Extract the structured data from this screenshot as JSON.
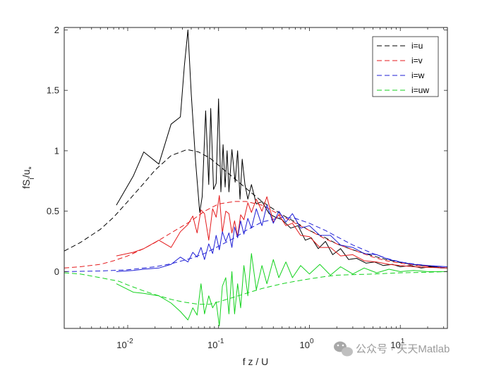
{
  "chart_data": {
    "type": "line",
    "xlabel": "f z / U",
    "ylabel": "fS_i/u_*",
    "xscale": "log",
    "xlim": [
      0.002,
      33
    ],
    "ylim": [
      -0.47,
      2.02
    ],
    "x_ticks": [
      {
        "value": 0.01,
        "label": "10^-2"
      },
      {
        "value": 0.1,
        "label": "10^-1"
      },
      {
        "value": 1,
        "label": "10^0"
      },
      {
        "value": 10,
        "label": "10^1"
      }
    ],
    "y_ticks": [
      0,
      0.5,
      1,
      1.5,
      2
    ],
    "y_tick_labels": [
      "0",
      "0.5",
      "1",
      "1.5",
      "2"
    ],
    "legend": {
      "position": "top-right",
      "entries": [
        "i=u",
        "i=v",
        "i=w",
        "i=uw"
      ]
    },
    "series": [
      {
        "name": "i=u",
        "color": "#000000",
        "kind": "model",
        "x": [
          0.002,
          0.003,
          0.005,
          0.007,
          0.01,
          0.015,
          0.02,
          0.03,
          0.045,
          0.06,
          0.08,
          0.1,
          0.15,
          0.2,
          0.3,
          0.5,
          0.7,
          1,
          1.5,
          2,
          3,
          5,
          7,
          10,
          15,
          20,
          33
        ],
        "y": [
          0.17,
          0.24,
          0.35,
          0.45,
          0.58,
          0.73,
          0.84,
          0.96,
          1.01,
          0.99,
          0.94,
          0.88,
          0.77,
          0.69,
          0.58,
          0.47,
          0.41,
          0.34,
          0.28,
          0.23,
          0.18,
          0.13,
          0.1,
          0.075,
          0.055,
          0.045,
          0.03
        ]
      },
      {
        "name": "i=v",
        "color": "#e41a1c",
        "kind": "model",
        "x": [
          0.002,
          0.003,
          0.005,
          0.007,
          0.01,
          0.015,
          0.02,
          0.03,
          0.05,
          0.07,
          0.1,
          0.15,
          0.2,
          0.3,
          0.5,
          0.7,
          1,
          1.5,
          2,
          3,
          5,
          7,
          10,
          15,
          20,
          33
        ],
        "y": [
          0.03,
          0.04,
          0.06,
          0.09,
          0.13,
          0.19,
          0.24,
          0.32,
          0.42,
          0.5,
          0.56,
          0.58,
          0.58,
          0.55,
          0.46,
          0.4,
          0.34,
          0.27,
          0.23,
          0.18,
          0.12,
          0.09,
          0.07,
          0.05,
          0.045,
          0.03
        ]
      },
      {
        "name": "i=w",
        "color": "#1f1fd6",
        "kind": "model",
        "x": [
          0.002,
          0.005,
          0.01,
          0.02,
          0.03,
          0.05,
          0.07,
          0.1,
          0.15,
          0.2,
          0.3,
          0.5,
          0.7,
          1,
          1.5,
          2,
          3,
          5,
          7,
          10,
          15,
          20,
          33
        ],
        "y": [
          0.0,
          0.005,
          0.015,
          0.04,
          0.065,
          0.11,
          0.15,
          0.21,
          0.28,
          0.34,
          0.41,
          0.45,
          0.44,
          0.4,
          0.34,
          0.29,
          0.22,
          0.15,
          0.11,
          0.08,
          0.06,
          0.05,
          0.03
        ]
      },
      {
        "name": "i=uw",
        "color": "#14d21e",
        "kind": "model",
        "x": [
          0.002,
          0.003,
          0.005,
          0.008,
          0.01,
          0.015,
          0.02,
          0.03,
          0.04,
          0.06,
          0.08,
          0.1,
          0.15,
          0.2,
          0.3,
          0.5,
          0.7,
          1,
          1.5,
          2,
          3,
          5,
          10,
          20,
          33
        ],
        "y": [
          -0.01,
          -0.02,
          -0.05,
          -0.08,
          -0.11,
          -0.16,
          -0.19,
          -0.23,
          -0.25,
          -0.27,
          -0.27,
          -0.25,
          -0.21,
          -0.18,
          -0.14,
          -0.1,
          -0.08,
          -0.06,
          -0.04,
          -0.03,
          -0.025,
          -0.02,
          -0.01,
          -0.005,
          0.0
        ]
      },
      {
        "name": "i=u",
        "color": "#000000",
        "kind": "measured",
        "x": [
          0.0075,
          0.0115,
          0.015,
          0.022,
          0.03,
          0.038,
          0.042,
          0.046,
          0.05,
          0.056,
          0.062,
          0.066,
          0.072,
          0.078,
          0.082,
          0.088,
          0.094,
          0.1,
          0.106,
          0.112,
          0.118,
          0.124,
          0.13,
          0.14,
          0.152,
          0.162,
          0.172,
          0.182,
          0.195,
          0.21,
          0.23,
          0.26,
          0.3,
          0.36,
          0.42,
          0.5,
          0.62,
          0.75,
          0.9,
          1.05,
          1.25,
          1.5,
          1.8,
          2.2,
          2.7,
          3.3,
          4.2,
          5.2,
          6.5,
          8.2,
          10,
          13,
          17,
          22,
          28,
          33
        ],
        "y": [
          0.55,
          0.79,
          0.99,
          0.89,
          1.22,
          1.28,
          1.7,
          2.0,
          1.47,
          0.9,
          0.49,
          0.62,
          1.33,
          0.72,
          1.35,
          0.68,
          0.73,
          1.43,
          0.66,
          1.05,
          0.7,
          1.0,
          0.66,
          1.01,
          0.74,
          1.0,
          0.6,
          0.93,
          0.72,
          0.6,
          0.72,
          0.56,
          0.58,
          0.48,
          0.45,
          0.43,
          0.36,
          0.38,
          0.26,
          0.28,
          0.19,
          0.25,
          0.14,
          0.19,
          0.1,
          0.11,
          0.07,
          0.08,
          0.05,
          0.06,
          0.04,
          0.05,
          0.03,
          0.04,
          0.03,
          0.03
        ]
      },
      {
        "name": "i=v",
        "color": "#e41a1c",
        "kind": "measured",
        "x": [
          0.0075,
          0.0115,
          0.015,
          0.022,
          0.03,
          0.038,
          0.046,
          0.052,
          0.058,
          0.064,
          0.07,
          0.078,
          0.086,
          0.094,
          0.102,
          0.11,
          0.12,
          0.13,
          0.14,
          0.15,
          0.162,
          0.175,
          0.19,
          0.21,
          0.23,
          0.26,
          0.3,
          0.34,
          0.4,
          0.46,
          0.55,
          0.65,
          0.8,
          1.0,
          1.3,
          1.7,
          2.2,
          3.0,
          4.0,
          5.5,
          7.5,
          10,
          14,
          20,
          33
        ],
        "y": [
          0.13,
          0.16,
          0.19,
          0.26,
          0.2,
          0.33,
          0.39,
          0.46,
          0.32,
          0.51,
          0.48,
          0.26,
          0.52,
          0.45,
          0.63,
          0.32,
          0.5,
          0.48,
          0.32,
          0.42,
          0.29,
          0.47,
          0.43,
          0.57,
          0.49,
          0.6,
          0.5,
          0.62,
          0.41,
          0.47,
          0.38,
          0.4,
          0.3,
          0.29,
          0.2,
          0.2,
          0.13,
          0.14,
          0.09,
          0.08,
          0.06,
          0.05,
          0.04,
          0.035,
          0.03
        ]
      },
      {
        "name": "i=w",
        "color": "#1f1fd6",
        "kind": "measured",
        "x": [
          0.0075,
          0.0115,
          0.015,
          0.022,
          0.03,
          0.038,
          0.046,
          0.052,
          0.058,
          0.064,
          0.07,
          0.078,
          0.086,
          0.094,
          0.102,
          0.11,
          0.12,
          0.13,
          0.14,
          0.15,
          0.162,
          0.175,
          0.19,
          0.21,
          0.23,
          0.26,
          0.3,
          0.34,
          0.4,
          0.46,
          0.55,
          0.65,
          0.8,
          1.0,
          1.3,
          1.7,
          2.2,
          3.0,
          4.0,
          5.5,
          7.5,
          10,
          14,
          20,
          33
        ],
        "y": [
          0.0,
          0.01,
          0.02,
          0.03,
          0.06,
          0.12,
          0.08,
          0.16,
          0.12,
          0.2,
          0.1,
          0.23,
          0.15,
          0.3,
          0.18,
          0.33,
          0.25,
          0.32,
          0.2,
          0.37,
          0.28,
          0.42,
          0.31,
          0.44,
          0.36,
          0.52,
          0.38,
          0.55,
          0.4,
          0.5,
          0.41,
          0.48,
          0.36,
          0.38,
          0.3,
          0.3,
          0.22,
          0.2,
          0.15,
          0.14,
          0.1,
          0.08,
          0.06,
          0.05,
          0.04
        ]
      },
      {
        "name": "i=uw",
        "color": "#14d21e",
        "kind": "measured",
        "x": [
          0.0075,
          0.0115,
          0.015,
          0.022,
          0.03,
          0.038,
          0.046,
          0.052,
          0.058,
          0.064,
          0.07,
          0.078,
          0.086,
          0.094,
          0.102,
          0.11,
          0.12,
          0.13,
          0.14,
          0.15,
          0.162,
          0.175,
          0.19,
          0.21,
          0.23,
          0.26,
          0.3,
          0.34,
          0.4,
          0.46,
          0.55,
          0.65,
          0.8,
          1.0,
          1.3,
          1.7,
          2.2,
          3.0,
          4.0,
          5.5,
          7.5,
          10,
          14,
          20,
          33
        ],
        "y": [
          -0.1,
          -0.17,
          -0.18,
          -0.2,
          -0.26,
          -0.33,
          -0.4,
          -0.3,
          -0.36,
          -0.1,
          -0.35,
          -0.2,
          -0.3,
          -0.25,
          -0.45,
          -0.12,
          -0.05,
          -0.35,
          0.0,
          -0.35,
          -0.1,
          -0.3,
          0.05,
          -0.2,
          0.15,
          -0.15,
          0.05,
          -0.1,
          0.1,
          -0.05,
          0.08,
          -0.05,
          0.05,
          -0.02,
          0.06,
          -0.03,
          0.04,
          -0.02,
          0.03,
          -0.01,
          0.02,
          0.0,
          0.01,
          0.0,
          0.0
        ]
      }
    ]
  },
  "watermark": {
    "text": "公众号 · 天天Matlab"
  }
}
